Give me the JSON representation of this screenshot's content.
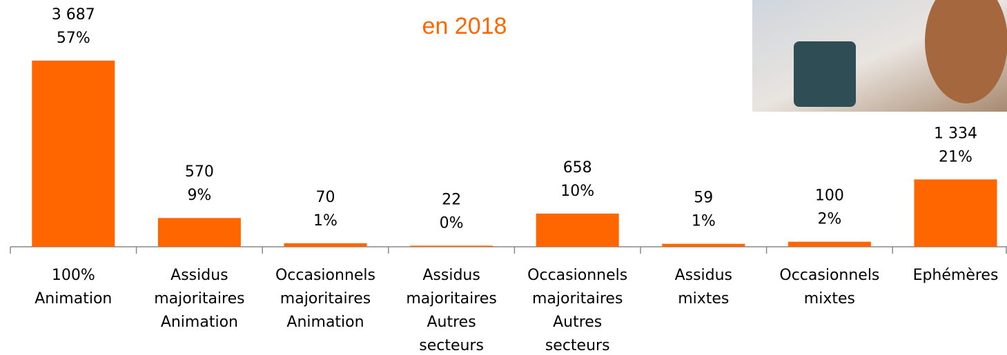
{
  "chart_data": {
    "type": "bar",
    "subtitle": "en 2018",
    "subtitle_color": "#ff6600",
    "categories": [
      [
        "100%",
        "Animation"
      ],
      [
        "Assidus",
        "majoritaires",
        "Animation"
      ],
      [
        "Occasionnels",
        "majoritaires",
        "Animation"
      ],
      [
        "Assidus",
        "majoritaires",
        "Autres",
        "secteurs"
      ],
      [
        "Occasionnels",
        "majoritaires",
        "Autres",
        "secteurs"
      ],
      [
        "Assidus",
        "mixtes"
      ],
      [
        "Occasionnels",
        "mixtes"
      ],
      [
        "Ephémères"
      ]
    ],
    "values": [
      3687,
      570,
      70,
      22,
      658,
      59,
      100,
      1334
    ],
    "value_labels": [
      "3 687",
      "570",
      "70",
      "22",
      "658",
      "59",
      "100",
      "1 334"
    ],
    "shares": [
      57,
      9,
      1,
      0,
      10,
      1,
      2,
      21
    ],
    "share_labels": [
      "57%",
      "9%",
      "1%",
      "0%",
      "10%",
      "1%",
      "2%",
      "21%"
    ],
    "color": "#ff6600",
    "ylim": [
      0,
      4000
    ]
  }
}
